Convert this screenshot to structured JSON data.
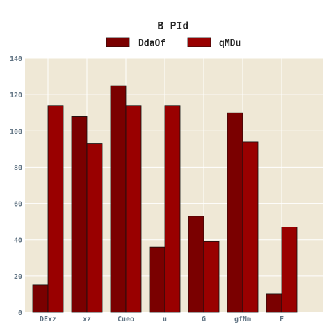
{
  "chart_data": {
    "type": "bar",
    "title": "B PId",
    "xlabel": "",
    "ylabel": "",
    "categories": [
      "DExz",
      "xz",
      "Cueo",
      "u",
      "G",
      "gfNm",
      "F"
    ],
    "series": [
      {
        "name": "DdaOf",
        "values": [
          15,
          108,
          125,
          36,
          53,
          110,
          10
        ],
        "color": "#7a0000"
      },
      {
        "name": "qMDu",
        "values": [
          114,
          93,
          114,
          114,
          39,
          94,
          47
        ],
        "color": "#990000"
      }
    ],
    "ylim": [
      0,
      140
    ],
    "yticks": [
      0,
      20,
      40,
      60,
      80,
      100,
      120,
      140
    ],
    "grid": true,
    "legend_position": "top-center",
    "background_color": "#efe8d6"
  }
}
